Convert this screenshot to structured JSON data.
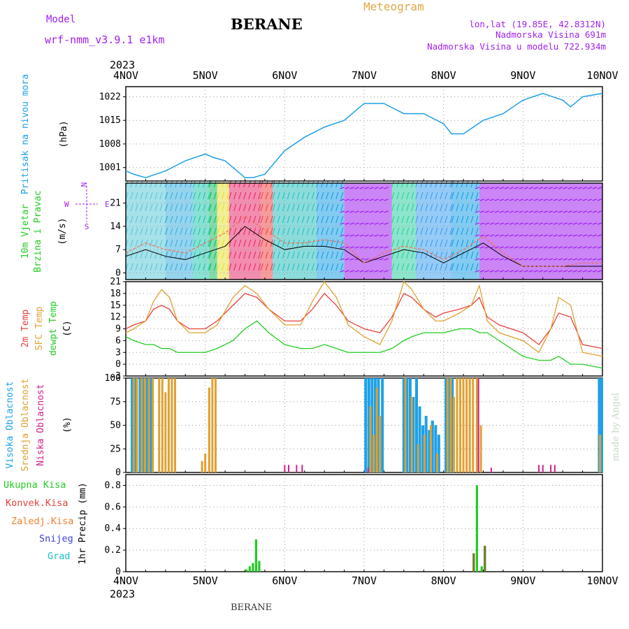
{
  "header": {
    "model_label": "Model",
    "model_name": "wrf-nmm_v3.9.1 e1km",
    "station_title": "BERANE",
    "chart_kind": "Meteogram",
    "lonlat": "lon,lat (19.85E, 42.8312N)",
    "altitude": "Nadmorska Visina 691m",
    "altitude_model": "Nadmorska Visina u modelu 722.934m"
  },
  "footer": {
    "station": "BERANE",
    "credit": "made by Angel"
  },
  "time_axis": {
    "year": "2023",
    "labels": [
      "4NOV",
      "5NOV",
      "6NOV",
      "7NOV",
      "8NOV",
      "9NOV",
      "10NOV"
    ]
  },
  "colors": {
    "pressure": "#1ea0e6",
    "temp2m": "#e8413c",
    "sfctemp": "#e0a030",
    "dewpt": "#22cc22",
    "high_cloud": "#1ea0e6",
    "mid_cloud": "#e0a030",
    "low_cloud": "#d0208a",
    "precip_total": "#22cc22",
    "precip_conv": "#e8413c",
    "precip_snow": "#4040e0",
    "precip_grad": "#20c0c0",
    "wind_label": "#22cc22",
    "wind_dir": "#a020f0"
  },
  "chart_data": [
    {
      "type": "line",
      "panel": "pressure",
      "ylabel": [
        "Pritisak na nivou mora",
        "(hPa)"
      ],
      "yticks": [
        1001,
        1008,
        1015,
        1022
      ],
      "ylim": [
        997,
        1025
      ],
      "x_days": [
        0,
        0.1,
        0.25,
        0.5,
        0.75,
        1.0,
        1.1,
        1.25,
        1.5,
        1.6,
        1.75,
        2.0,
        2.25,
        2.5,
        2.75,
        3.0,
        3.25,
        3.5,
        3.75,
        4.0,
        4.1,
        4.25,
        4.5,
        4.75,
        5.0,
        5.25,
        5.5,
        5.6,
        5.75,
        6.0
      ],
      "series": [
        {
          "values": [
            1000,
            999,
            998,
            1000,
            1003,
            1005,
            1004,
            1003,
            998,
            998,
            999,
            1006,
            1010,
            1013,
            1015,
            1020,
            1020,
            1017,
            1017,
            1014,
            1011,
            1011,
            1015,
            1017,
            1021,
            1023,
            1021,
            1019,
            1022,
            1023
          ]
        }
      ],
      "grid": true
    },
    {
      "type": "line",
      "panel": "wind",
      "ylabel": [
        "10m Vjetar",
        "Brzina i Pravac",
        "(m/s)"
      ],
      "direction_legend": [
        "S",
        "W",
        "E",
        "N"
      ],
      "yticks": [
        0,
        7,
        14,
        21
      ],
      "ylim": [
        -2,
        27
      ],
      "x_days": [
        0,
        0.25,
        0.5,
        0.75,
        1.0,
        1.25,
        1.5,
        1.75,
        2.0,
        2.25,
        2.5,
        2.75,
        3.0,
        3.25,
        3.5,
        3.75,
        4.0,
        4.25,
        4.5,
        4.75,
        5.0,
        5.25,
        5.5,
        5.75,
        6.0
      ],
      "series": [
        {
          "values": [
            5,
            7,
            5,
            4,
            6,
            8,
            14,
            10,
            7,
            8,
            8,
            7,
            3,
            5,
            7,
            6,
            3,
            6,
            9,
            5,
            2,
            2,
            2,
            2,
            2
          ]
        },
        {
          "values": [
            6,
            9,
            7,
            6,
            9,
            12,
            17,
            13,
            9,
            9,
            10,
            9,
            3,
            6,
            8,
            7,
            4,
            7,
            11,
            6,
            2,
            2,
            2,
            3,
            3
          ]
        }
      ],
      "grid": true
    },
    {
      "type": "line",
      "panel": "temperature",
      "ylabel": [
        "2m Temp",
        "SFC Temp",
        "dewpt Temp",
        "(C)"
      ],
      "yticks": [
        -3,
        0,
        3,
        6,
        9,
        12,
        15,
        18,
        21
      ],
      "ylim": [
        -3,
        21
      ],
      "x_days": [
        0,
        0.1,
        0.25,
        0.35,
        0.45,
        0.55,
        0.65,
        0.8,
        1.0,
        1.15,
        1.35,
        1.5,
        1.65,
        1.8,
        2.0,
        2.2,
        2.35,
        2.5,
        2.65,
        2.8,
        3.0,
        3.2,
        3.35,
        3.5,
        3.6,
        3.75,
        3.9,
        4.0,
        4.2,
        4.35,
        4.45,
        4.55,
        4.7,
        5.0,
        5.2,
        5.35,
        5.45,
        5.6,
        5.75,
        6.0
      ],
      "series": [
        {
          "name": "2m Temp",
          "values": [
            9,
            10,
            11,
            14,
            15,
            14,
            11,
            9,
            9,
            11,
            15,
            18,
            17,
            14,
            11,
            11,
            14,
            18,
            15,
            11,
            9,
            8,
            12,
            18,
            17,
            14,
            12,
            13,
            14,
            15,
            17,
            12,
            10,
            8,
            5,
            9,
            13,
            12,
            5,
            4
          ]
        },
        {
          "name": "SFC Temp",
          "values": [
            8,
            9,
            11,
            16,
            19,
            17,
            11,
            8,
            8,
            10,
            17,
            20,
            18,
            14,
            10,
            10,
            16,
            21,
            17,
            10,
            7,
            5,
            11,
            21,
            19,
            14,
            11,
            11,
            13,
            15,
            20,
            11,
            8,
            6,
            3,
            9,
            17,
            15,
            3,
            2
          ]
        },
        {
          "name": "dewpt Temp",
          "values": [
            7,
            6,
            5,
            5,
            4,
            4,
            3,
            3,
            3,
            4,
            6,
            9,
            11,
            8,
            5,
            4,
            4,
            5,
            4,
            3,
            3,
            3,
            4,
            6,
            7,
            8,
            8,
            8,
            9,
            9,
            8,
            8,
            6,
            2,
            1,
            1,
            2,
            0,
            0,
            -1
          ]
        }
      ],
      "grid": true
    },
    {
      "type": "bar",
      "panel": "cloud",
      "ylabel": [
        "Visoka Oblacnost",
        "Srednja Oblacnost",
        "Niska Oblacnost",
        "(%)"
      ],
      "yticks": [
        0,
        25,
        50,
        75,
        100
      ],
      "ylim": [
        0,
        100
      ],
      "series": [
        {
          "name": "Visoka Oblacnost",
          "bars": [
            [
              0.08,
              100
            ],
            [
              0.12,
              100
            ],
            [
              0.18,
              100
            ],
            [
              0.22,
              100
            ],
            [
              0.27,
              100
            ],
            [
              0.32,
              100
            ],
            [
              3.02,
              100
            ],
            [
              3.06,
              100
            ],
            [
              3.1,
              100
            ],
            [
              3.14,
              100
            ],
            [
              3.18,
              100
            ],
            [
              3.23,
              100
            ],
            [
              3.5,
              100
            ],
            [
              3.54,
              100
            ],
            [
              3.58,
              100
            ],
            [
              3.62,
              80
            ],
            [
              3.66,
              100
            ],
            [
              3.7,
              70
            ],
            [
              3.74,
              50
            ],
            [
              3.78,
              60
            ],
            [
              3.82,
              45
            ],
            [
              3.86,
              55
            ],
            [
              3.9,
              50
            ],
            [
              3.94,
              40
            ],
            [
              4.03,
              100
            ],
            [
              4.07,
              100
            ],
            [
              4.11,
              100
            ],
            [
              5.96,
              100
            ],
            [
              5.99,
              100
            ]
          ]
        },
        {
          "name": "Srednja Oblacnost",
          "bars": [
            [
              0.1,
              100
            ],
            [
              0.14,
              100
            ],
            [
              0.2,
              100
            ],
            [
              0.24,
              100
            ],
            [
              0.29,
              100
            ],
            [
              0.34,
              100
            ],
            [
              0.42,
              100
            ],
            [
              0.46,
              100
            ],
            [
              0.5,
              85
            ],
            [
              0.54,
              100
            ],
            [
              0.58,
              100
            ],
            [
              0.62,
              100
            ],
            [
              0.96,
              12
            ],
            [
              1.0,
              20
            ],
            [
              1.05,
              90
            ],
            [
              1.09,
              100
            ],
            [
              1.13,
              100
            ],
            [
              3.08,
              70
            ],
            [
              3.12,
              40
            ],
            [
              3.16,
              90
            ],
            [
              3.2,
              60
            ],
            [
              3.52,
              100
            ],
            [
              3.6,
              80
            ],
            [
              3.68,
              30
            ],
            [
              3.76,
              40
            ],
            [
              3.84,
              50
            ],
            [
              3.92,
              20
            ],
            [
              4.05,
              100
            ],
            [
              4.09,
              100
            ],
            [
              4.13,
              80
            ],
            [
              4.17,
              100
            ],
            [
              4.21,
              100
            ],
            [
              4.25,
              100
            ],
            [
              4.29,
              100
            ],
            [
              4.33,
              100
            ],
            [
              4.37,
              100
            ],
            [
              4.42,
              100
            ],
            [
              4.47,
              50
            ],
            [
              5.97,
              40
            ]
          ]
        },
        {
          "name": "Niska Oblacnost",
          "bars": [
            [
              2.0,
              8
            ],
            [
              2.05,
              8
            ],
            [
              2.15,
              8
            ],
            [
              2.22,
              8
            ],
            [
              3.05,
              5
            ],
            [
              4.44,
              100
            ],
            [
              4.6,
              5
            ],
            [
              5.2,
              8
            ],
            [
              5.25,
              8
            ],
            [
              5.35,
              8
            ],
            [
              5.4,
              8
            ]
          ]
        }
      ],
      "grid": true
    },
    {
      "type": "bar",
      "panel": "precip",
      "ylabel": [
        "1hr Precip (mm)"
      ],
      "yticks": [
        0,
        0.2,
        0.4,
        0.6,
        0.8
      ],
      "ylim": [
        0,
        0.9
      ],
      "legend": [
        "Ukupna Kisa",
        "Konvek.Kisa",
        "Zaledj.Kisa",
        "Snijeg",
        "Grad"
      ],
      "series": [
        {
          "name": "Ukupna Kisa",
          "bars": [
            [
              1.52,
              0.02
            ],
            [
              1.56,
              0.05
            ],
            [
              1.6,
              0.08
            ],
            [
              1.64,
              0.3
            ],
            [
              1.68,
              0.1
            ],
            [
              4.38,
              0.17
            ],
            [
              4.42,
              0.8
            ],
            [
              4.48,
              0.05
            ],
            [
              4.52,
              0.24
            ]
          ]
        },
        {
          "name": "Konvek.Kisa",
          "bars": [
            [
              4.38,
              0.17
            ],
            [
              4.52,
              0.24
            ]
          ]
        }
      ],
      "grid": true
    }
  ]
}
